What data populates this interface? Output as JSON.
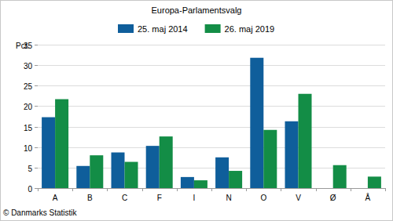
{
  "chart_data": {
    "type": "bar",
    "title": "Europa-Parlamentsvalg",
    "y_label": "Pct.",
    "source": "© Danmarks Statistik",
    "categories": [
      "A",
      "B",
      "C",
      "F",
      "I",
      "N",
      "O",
      "V",
      "Ø",
      "Å"
    ],
    "series": [
      {
        "name": "25. maj 2014",
        "color": "#0f5e9b",
        "values": [
          17.3,
          5.4,
          8.7,
          10.3,
          2.7,
          7.5,
          31.8,
          16.3,
          null,
          null
        ]
      },
      {
        "name": "26. maj 2019",
        "color": "#138d46",
        "values": [
          21.7,
          8.0,
          6.4,
          12.6,
          1.9,
          4.2,
          14.2,
          23.0,
          5.6,
          2.8
        ]
      }
    ],
    "ylim": [
      0,
      35
    ],
    "yticks": [
      0,
      5,
      10,
      15,
      20,
      25,
      30,
      35
    ],
    "grid": true,
    "legend": "top"
  }
}
